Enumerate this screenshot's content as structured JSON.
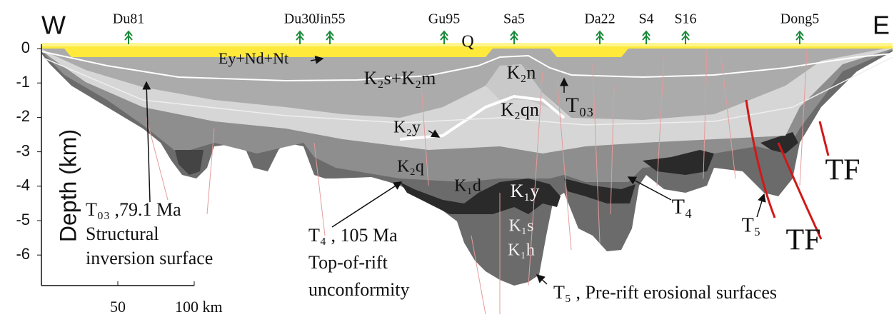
{
  "header": {
    "west": "W",
    "east": "E"
  },
  "wells": [
    "Du81",
    "Du30",
    "Jin55",
    "Gu95",
    "Sa5",
    "Da22",
    "S4",
    "S16",
    "Dong5"
  ],
  "depth_axis": {
    "label": "Depth (km)",
    "ticks": [
      0,
      -1,
      -2,
      -3,
      -4,
      -5,
      -6
    ]
  },
  "scale_bar": {
    "labels": [
      "50",
      "100 km"
    ]
  },
  "units": [
    "Q",
    "Ey+Nd+Nt",
    "K₂s+K₂m",
    "K₂n",
    "K₂qn",
    "K₂y",
    "K₂q",
    "K₁d",
    "K₁y",
    "K₁s",
    "K₁h"
  ],
  "boundaries": [
    "T₀₃",
    "T₄",
    "T₅",
    "TF",
    "TF"
  ],
  "annotations": [
    {
      "lines": [
        "T₀₃ ,79.1 Ma",
        "Structural",
        "inversion surface"
      ]
    },
    {
      "lines": [
        "T₄ , 105 Ma",
        "Top-of-rift",
        "unconformity"
      ]
    },
    {
      "lines": [
        "T₅ , Pre-rift erosional surfaces"
      ]
    }
  ]
}
